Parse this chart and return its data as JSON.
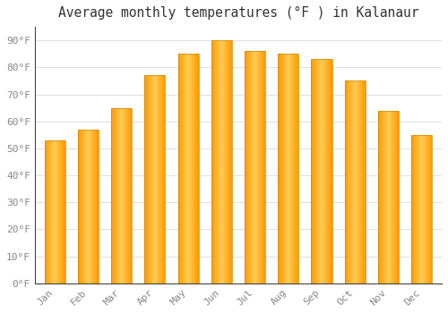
{
  "title": "Average monthly temperatures (°F ) in Kalanaur",
  "months": [
    "Jan",
    "Feb",
    "Mar",
    "Apr",
    "May",
    "Jun",
    "Jul",
    "Aug",
    "Sep",
    "Oct",
    "Nov",
    "Dec"
  ],
  "values": [
    53,
    57,
    65,
    77,
    85,
    90,
    86,
    85,
    83,
    75,
    64,
    55
  ],
  "bar_color": "#FFA500",
  "bar_edge_color": "#CC8800",
  "ylim": [
    0,
    95
  ],
  "yticks": [
    0,
    10,
    20,
    30,
    40,
    50,
    60,
    70,
    80,
    90
  ],
  "ytick_labels": [
    "0°F",
    "10°F",
    "20°F",
    "30°F",
    "40°F",
    "50°F",
    "60°F",
    "70°F",
    "80°F",
    "90°F"
  ],
  "background_color": "#FFFFFF",
  "grid_color": "#E0E0E0",
  "title_fontsize": 10.5,
  "tick_fontsize": 8,
  "tick_color": "#888888",
  "font_family": "monospace"
}
